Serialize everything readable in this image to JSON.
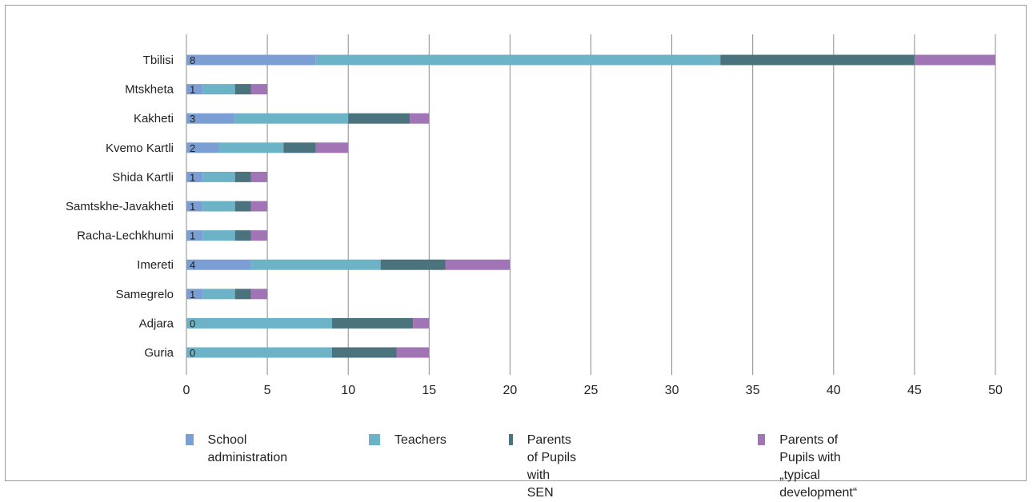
{
  "chart_data": {
    "type": "bar",
    "orientation": "horizontal",
    "stacked": true,
    "categories": [
      "Tbilisi",
      "Mtskheta",
      "Kakheti",
      "Kvemo Kartli",
      "Shida Kartli",
      "Samtskhe-Javakheti",
      "Racha-Lechkhumi",
      "Imereti",
      "Samegrelo",
      "Adjara",
      "Guria"
    ],
    "series": [
      {
        "name": "School administration",
        "color": "#7b9fd4",
        "values": [
          8,
          1,
          3,
          2,
          1,
          1,
          1,
          4,
          1,
          0,
          0
        ]
      },
      {
        "name": "Teachers",
        "color": "#6cb3c8",
        "values": [
          25,
          2,
          7,
          4,
          2,
          2,
          2,
          8,
          2,
          9,
          9
        ]
      },
      {
        "name": "Parents of Pupils with SEN",
        "color": "#4a737e",
        "values": [
          12,
          1,
          3.8,
          2,
          1,
          1,
          1,
          4,
          1,
          5,
          4
        ]
      },
      {
        "name": "Parents of Pupils with\n„typical development“",
        "color": "#a175b5",
        "values": [
          5,
          1,
          1.2,
          2,
          1,
          1,
          1,
          4,
          1,
          1,
          2
        ]
      }
    ],
    "data_labels": [
      "8",
      "1",
      "3",
      "2",
      "1",
      "1",
      "1",
      "4",
      "1",
      "0",
      "0"
    ],
    "xlim": [
      0,
      50
    ],
    "x_ticks": [
      "0",
      "5",
      "10",
      "15",
      "20",
      "25",
      "30",
      "35",
      "40",
      "45",
      "50"
    ],
    "grid": true,
    "legend_position": "bottom",
    "title": "",
    "xlabel": "",
    "ylabel": ""
  }
}
